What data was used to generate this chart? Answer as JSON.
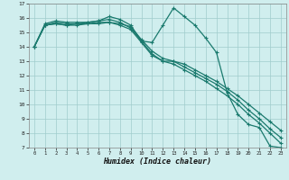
{
  "xlabel": "Humidex (Indice chaleur)",
  "bg_color": "#d0eeee",
  "grid_color": "#a0cccc",
  "line_color": "#1a7a6e",
  "xlim": [
    -0.5,
    23.5
  ],
  "ylim": [
    7,
    17
  ],
  "xticks": [
    0,
    1,
    2,
    3,
    4,
    5,
    6,
    7,
    8,
    9,
    10,
    11,
    12,
    13,
    14,
    15,
    16,
    17,
    18,
    19,
    20,
    21,
    22,
    23
  ],
  "yticks": [
    7,
    8,
    9,
    10,
    11,
    12,
    13,
    14,
    15,
    16,
    17
  ],
  "series1_x": [
    0,
    1,
    2,
    3,
    4,
    5,
    6,
    7,
    8,
    9,
    10,
    11,
    12,
    13,
    14,
    15,
    16,
    17,
    18,
    19,
    20,
    21,
    22,
    23
  ],
  "series1_y": [
    14.0,
    15.6,
    15.8,
    15.7,
    15.7,
    15.7,
    15.8,
    16.1,
    15.9,
    15.5,
    14.4,
    14.3,
    15.5,
    16.7,
    16.1,
    15.5,
    14.6,
    13.6,
    10.8,
    9.3,
    8.6,
    8.4,
    7.1,
    7.0
  ],
  "series2_x": [
    0,
    1,
    2,
    3,
    4,
    5,
    6,
    7,
    8,
    9,
    10,
    11,
    12,
    13,
    14,
    15,
    16,
    17,
    18,
    19,
    20,
    21,
    22,
    23
  ],
  "series2_y": [
    14.0,
    15.5,
    15.6,
    15.5,
    15.5,
    15.6,
    15.7,
    15.7,
    15.5,
    15.2,
    14.3,
    13.4,
    13.0,
    13.0,
    12.8,
    12.4,
    12.0,
    11.6,
    11.1,
    10.6,
    10.0,
    9.4,
    8.8,
    8.2
  ],
  "series3_x": [
    0,
    1,
    2,
    3,
    4,
    5,
    6,
    7,
    8,
    9,
    10,
    11,
    12,
    13,
    14,
    15,
    16,
    17,
    18,
    19,
    20,
    21,
    22,
    23
  ],
  "series3_y": [
    14.0,
    15.5,
    15.6,
    15.5,
    15.6,
    15.6,
    15.6,
    15.7,
    15.6,
    15.4,
    14.5,
    13.7,
    13.2,
    13.0,
    12.6,
    12.2,
    11.8,
    11.4,
    10.9,
    10.3,
    9.6,
    9.0,
    8.3,
    7.7
  ],
  "series4_x": [
    0,
    1,
    2,
    3,
    4,
    5,
    6,
    7,
    8,
    9,
    10,
    11,
    12,
    13,
    14,
    15,
    16,
    17,
    18,
    19,
    20,
    21,
    22,
    23
  ],
  "series4_y": [
    14.0,
    15.5,
    15.7,
    15.6,
    15.6,
    15.7,
    15.8,
    15.9,
    15.7,
    15.3,
    14.4,
    13.5,
    13.0,
    12.8,
    12.4,
    12.0,
    11.6,
    11.1,
    10.6,
    10.0,
    9.3,
    8.7,
    8.0,
    7.3
  ]
}
